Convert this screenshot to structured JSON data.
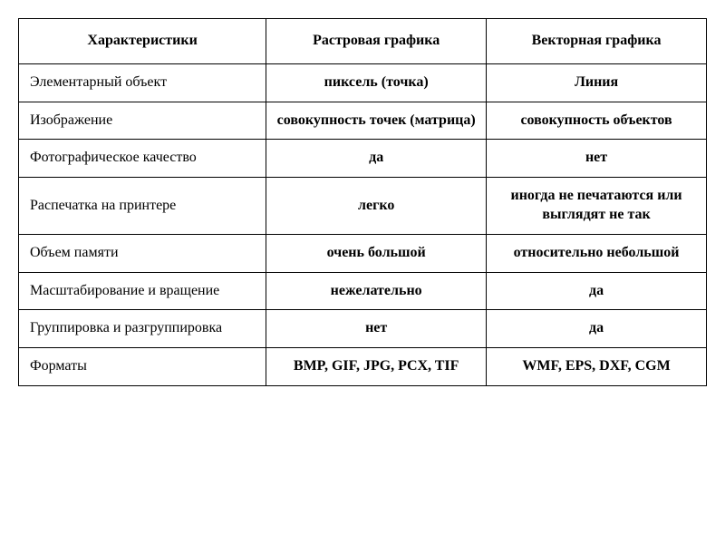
{
  "table": {
    "type": "table",
    "columns": [
      "Характеристики",
      "Растровая графика",
      "Векторная графика"
    ],
    "rows": [
      [
        "Элементарный объект",
        "пиксель (точка)",
        "Линия"
      ],
      [
        "Изображение",
        "совокупность точек (матрица)",
        "совокупность объектов"
      ],
      [
        "Фотографическое качество",
        "да",
        "нет"
      ],
      [
        "Распечатка на принтере",
        "легко",
        "иногда не печатаются или выглядят не так"
      ],
      [
        "Объем памяти",
        "очень большой",
        "относительно небольшой"
      ],
      [
        "Масштабирование и вращение",
        "нежелательно",
        "да"
      ],
      [
        "Группировка и разгруппировка",
        "нет",
        "да"
      ],
      [
        "Форматы",
        "BMP, GIF, JPG, PCX, TIF",
        "WMF, EPS, DXF, CGM"
      ]
    ],
    "border_color": "#000000",
    "background_color": "#ffffff",
    "header_fontweight": "bold",
    "value_fontweight": "bold",
    "label_fontweight": "normal",
    "font_family": "Times New Roman",
    "font_size": 16,
    "col_widths_percent": [
      36,
      32,
      32
    ]
  }
}
